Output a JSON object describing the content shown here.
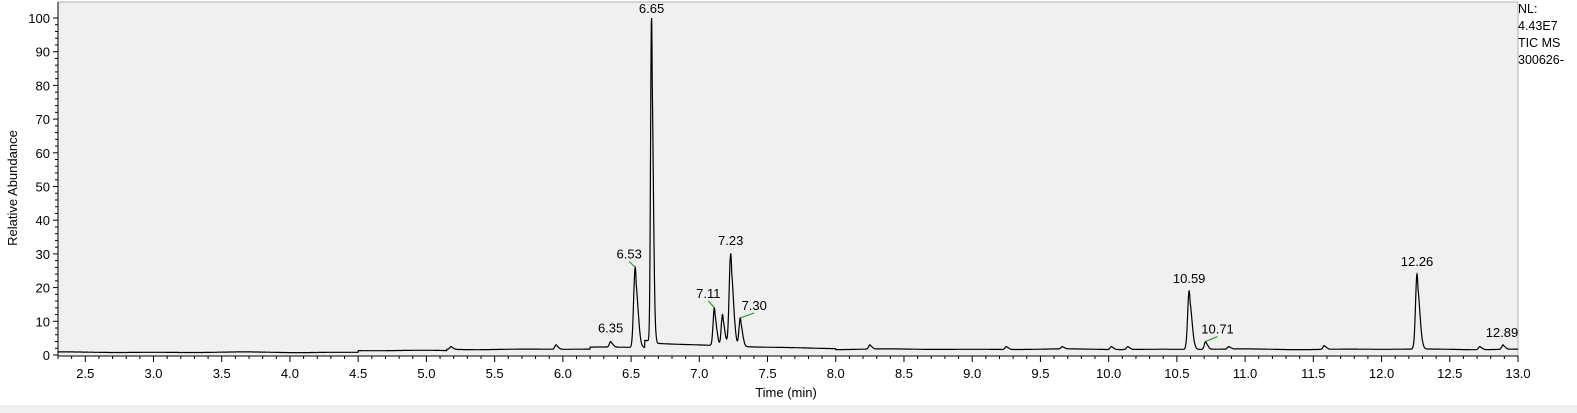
{
  "chart_data": {
    "type": "line",
    "xlabel": "Time (min)",
    "ylabel": "Relative Abundance",
    "xlim": [
      2.3,
      13.0
    ],
    "ylim": [
      0,
      100
    ],
    "x_ticks": [
      "2.5",
      "3.0",
      "3.5",
      "4.0",
      "4.5",
      "5.0",
      "5.5",
      "6.0",
      "6.5",
      "7.0",
      "7.5",
      "8.0",
      "8.5",
      "9.0",
      "9.5",
      "10.0",
      "10.5",
      "11.0",
      "11.5",
      "12.0",
      "12.5",
      "13.0"
    ],
    "y_ticks": [
      "0",
      "10",
      "20",
      "30",
      "40",
      "50",
      "60",
      "70",
      "80",
      "90",
      "100"
    ],
    "grid": false,
    "peaks": [
      {
        "rt": 6.35,
        "label": "6.35",
        "height": 4
      },
      {
        "rt": 6.53,
        "label": "6.53",
        "height": 26
      },
      {
        "rt": 6.65,
        "label": "6.65",
        "height": 100
      },
      {
        "rt": 7.11,
        "label": "7.11",
        "height": 14
      },
      {
        "rt": 7.23,
        "label": "7.23",
        "height": 30
      },
      {
        "rt": 7.3,
        "label": "7.30",
        "height": 11
      },
      {
        "rt": 10.59,
        "label": "10.59",
        "height": 19
      },
      {
        "rt": 10.71,
        "label": "10.71",
        "height": 4
      },
      {
        "rt": 12.26,
        "label": "12.26",
        "height": 24
      },
      {
        "rt": 12.89,
        "label": "12.89",
        "height": 3
      }
    ],
    "minor_peaks": [
      {
        "rt": 5.18,
        "height": 2.5
      },
      {
        "rt": 5.95,
        "height": 3
      },
      {
        "rt": 7.17,
        "height": 12
      },
      {
        "rt": 8.25,
        "height": 3
      },
      {
        "rt": 9.25,
        "height": 2.5
      },
      {
        "rt": 9.66,
        "height": 2.5
      },
      {
        "rt": 10.02,
        "height": 2.5
      },
      {
        "rt": 10.14,
        "height": 2.5
      },
      {
        "rt": 10.88,
        "height": 2.5
      },
      {
        "rt": 11.58,
        "height": 2.8
      },
      {
        "rt": 12.72,
        "height": 2.5
      }
    ]
  },
  "side_info": {
    "nl_label": "NL:",
    "nl_value": "4.43E7",
    "scan_filter": "TIC  MS",
    "file_name": "300626-"
  },
  "colors": {
    "plot_background": "#f0f0f0",
    "trace": "#000000",
    "label_leader": "#2ca02c"
  }
}
